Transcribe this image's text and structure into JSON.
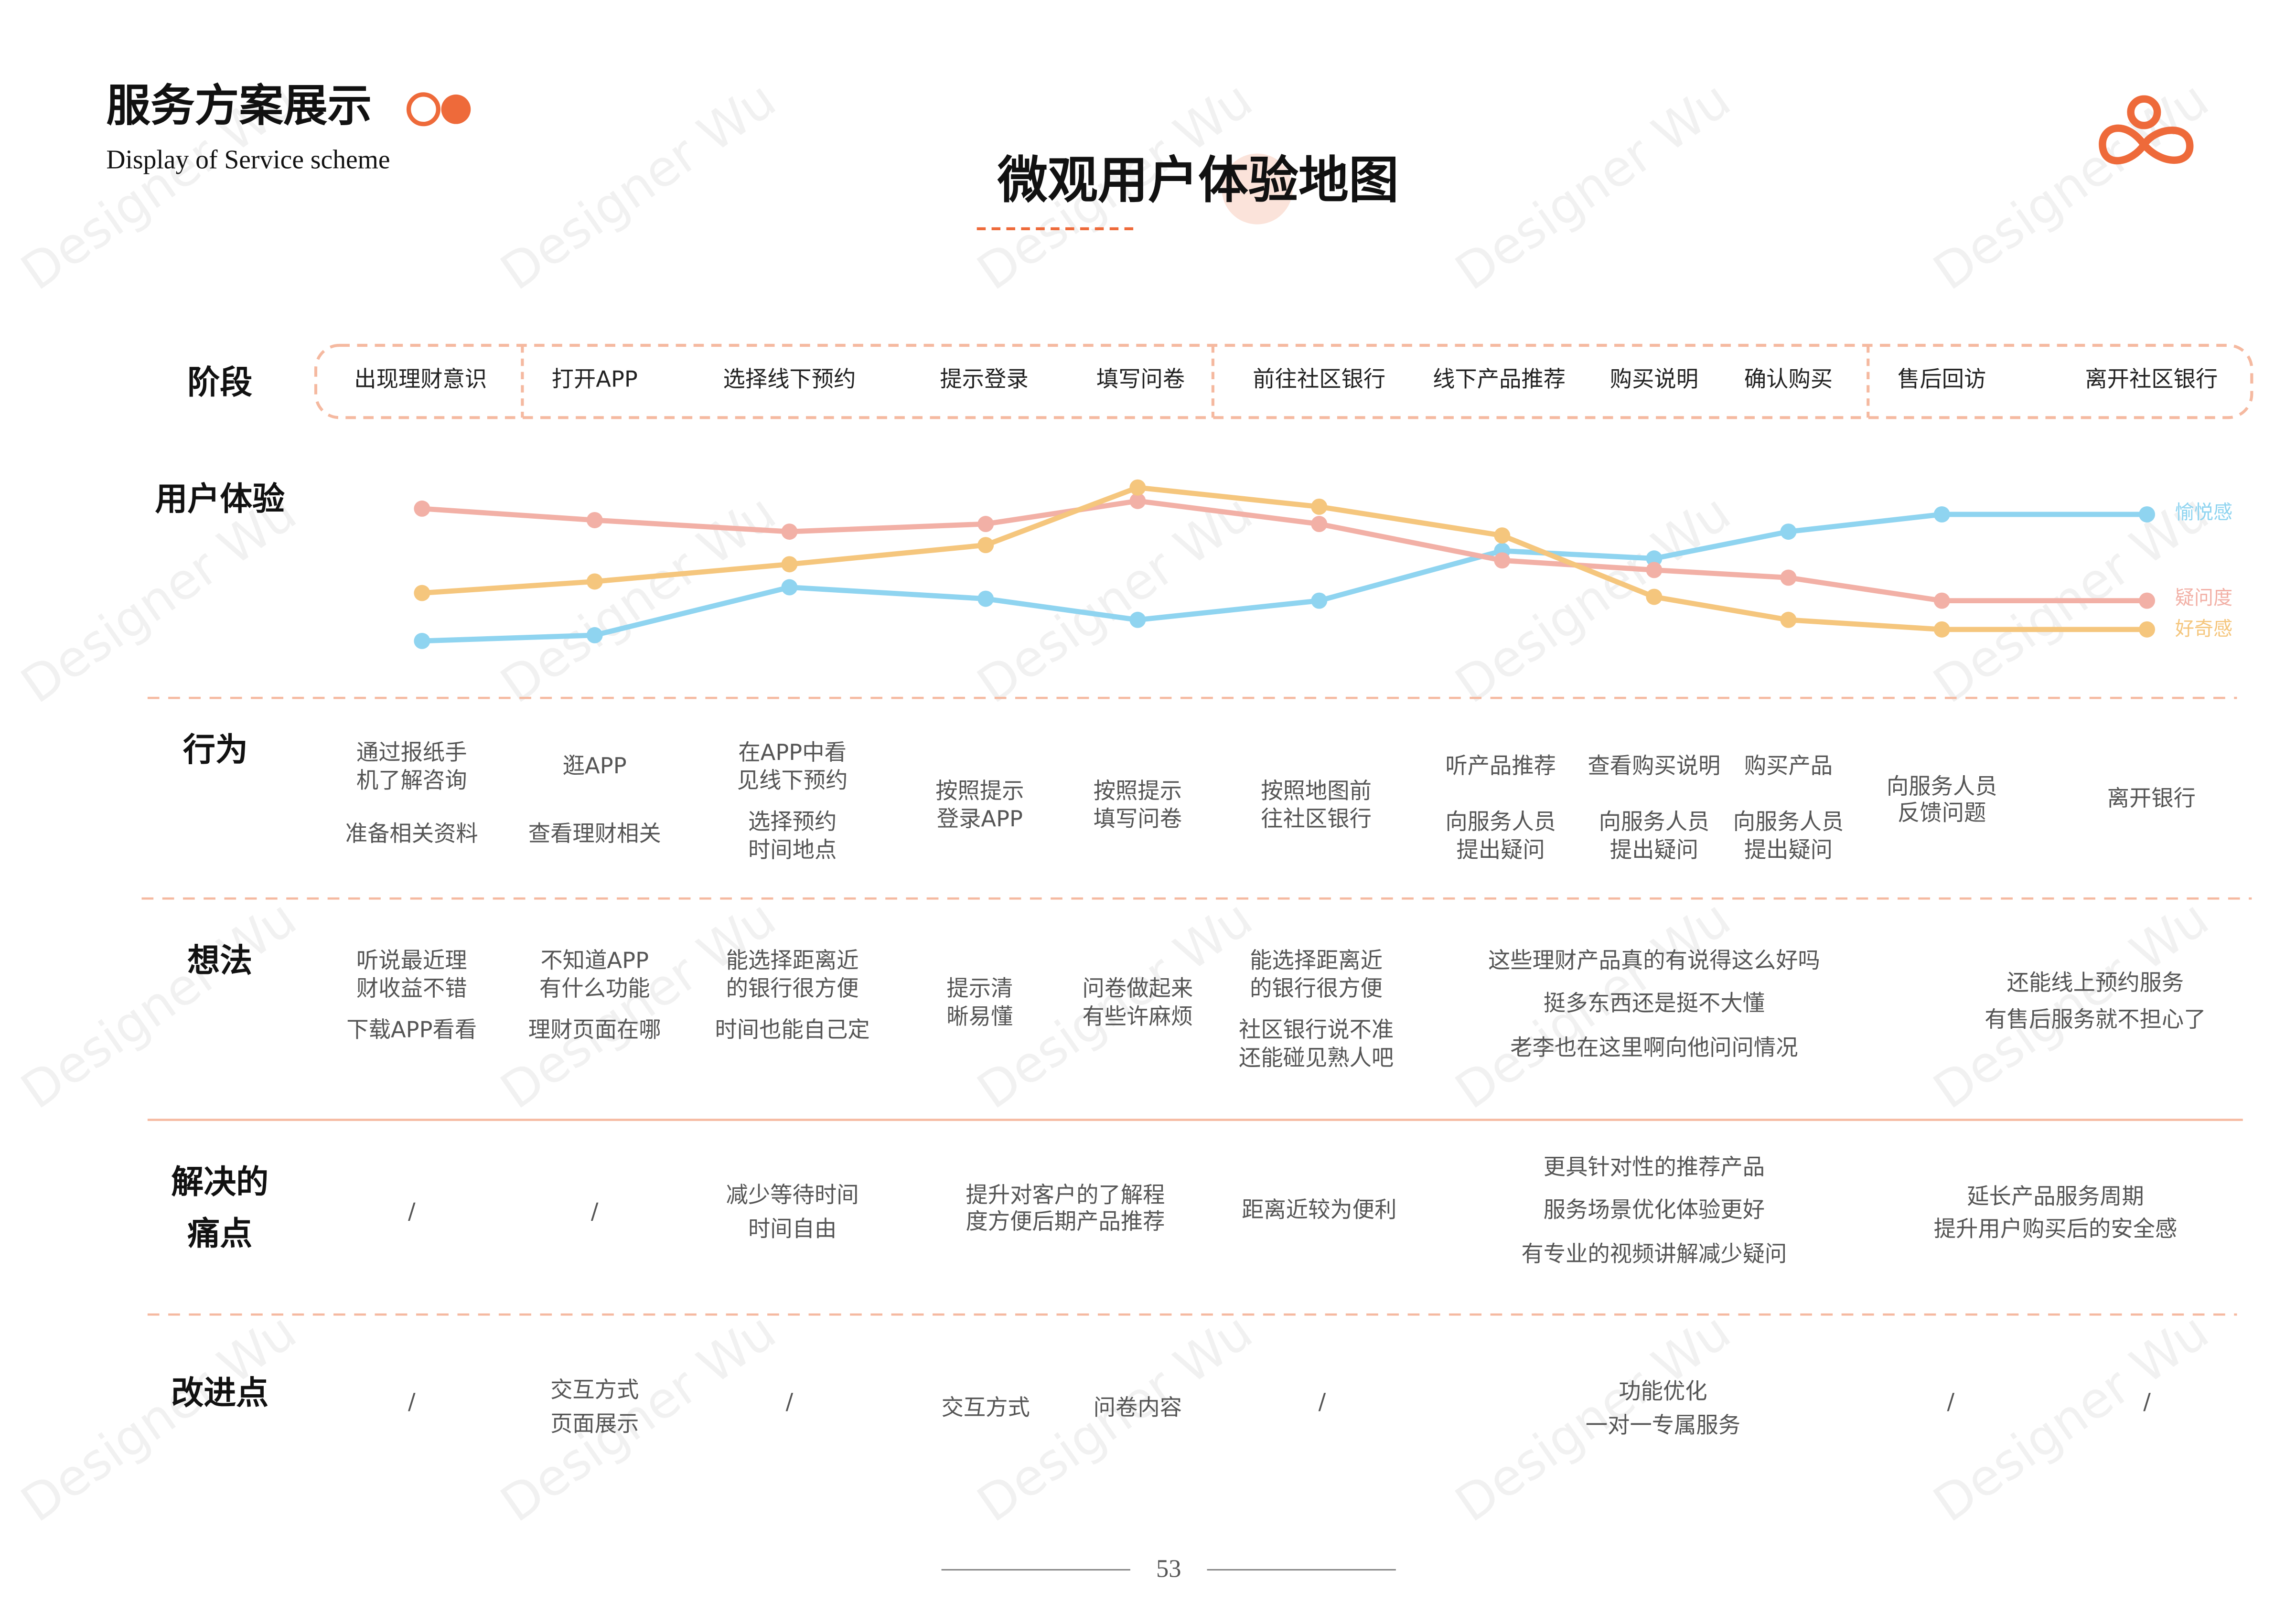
{
  "header": {
    "title": "服务方案展示",
    "subtitle": "Display of Service scheme"
  },
  "title": "微观用户体验地图",
  "page_number": 53,
  "watermark": "Designer Wu",
  "stages": {
    "label": "阶段",
    "items": [
      "出现理财意识",
      "打开APP",
      "选择线下预约",
      "提示登录",
      "填写问卷",
      "前往社区银行",
      "线下产品推荐",
      "购买说明",
      "确认购买",
      "售后回访",
      "离开社区银行"
    ]
  },
  "experience": {
    "label": "用户体验",
    "series": [
      {
        "name": "愉悦感",
        "color": "#8fd4f0",
        "values": [
          12,
          15,
          40,
          34,
          23,
          33,
          59,
          55,
          69,
          78,
          78
        ]
      },
      {
        "name": "疑问度",
        "color": "#f2b0a6",
        "values": [
          81,
          75,
          69,
          73,
          85,
          73,
          54,
          49,
          45,
          33,
          33
        ]
      },
      {
        "name": "好奇感",
        "color": "#f5c67d",
        "values": [
          37,
          43,
          52,
          62,
          92,
          82,
          67,
          35,
          23,
          18,
          18
        ]
      }
    ]
  },
  "behavior": {
    "label": "行为",
    "cells": [
      [
        "通过报纸手",
        "机了解咨询",
        "准备相关资料"
      ],
      [
        "逛APP",
        "查看理财相关"
      ],
      [
        "在APP中看",
        "见线下预约",
        "选择预约",
        "时间地点"
      ],
      [
        "按照提示",
        "登录APP"
      ],
      [
        "按照提示",
        "填写问卷"
      ],
      [
        "按照地图前",
        "往社区银行"
      ],
      [
        "听产品推荐",
        "向服务人员",
        "提出疑问"
      ],
      [
        "查看购买说明",
        "向服务人员",
        "提出疑问"
      ],
      [
        "购买产品",
        "向服务人员",
        "提出疑问"
      ],
      [
        "向服务人员",
        "反馈问题"
      ],
      [
        "离开银行"
      ]
    ]
  },
  "thoughts": {
    "label": "想法",
    "cells": [
      [
        "听说最近理",
        "财收益不错",
        "下载APP看看"
      ],
      [
        "不知道APP",
        "有什么功能",
        "理财页面在哪"
      ],
      [
        "能选择距离近",
        "的银行很方便",
        "时间也能自己定"
      ],
      [
        "提示清",
        "晰易懂"
      ],
      [
        "问卷做起来",
        "有些许麻烦"
      ],
      [
        "能选择距离近",
        "的银行很方便",
        "社区银行说不准",
        "还能碰见熟人吧"
      ],
      [
        "这些理财产品真的有说得这么好吗",
        "挺多东西还是挺不大懂",
        "老李也在这里啊向他问问情况"
      ],
      [
        "还能线上预约服务",
        "有售后服务就不担心了"
      ]
    ]
  },
  "pain_points": {
    "label": [
      "解决的",
      "痛点"
    ],
    "cells": [
      [
        "/"
      ],
      [
        "/"
      ],
      [
        "减少等待时间",
        "时间自由"
      ],
      [
        "提升对客户的了解程",
        "度方便后期产品推荐"
      ],
      [
        "距离近较为便利"
      ],
      [
        "更具针对性的推荐产品",
        "服务场景优化体验更好",
        "有专业的视频讲解减少疑问"
      ],
      [
        "延长产品服务周期",
        "提升用户购买后的安全感"
      ]
    ]
  },
  "improvements": {
    "label": "改进点",
    "cells": [
      [
        "/"
      ],
      [
        "交互方式",
        "页面展示"
      ],
      [
        "/"
      ],
      [
        "交互方式"
      ],
      [
        "问卷内容"
      ],
      [
        "/"
      ],
      [
        "功能优化",
        "一对一专属服务"
      ],
      [
        "/"
      ],
      [
        "/"
      ]
    ]
  }
}
